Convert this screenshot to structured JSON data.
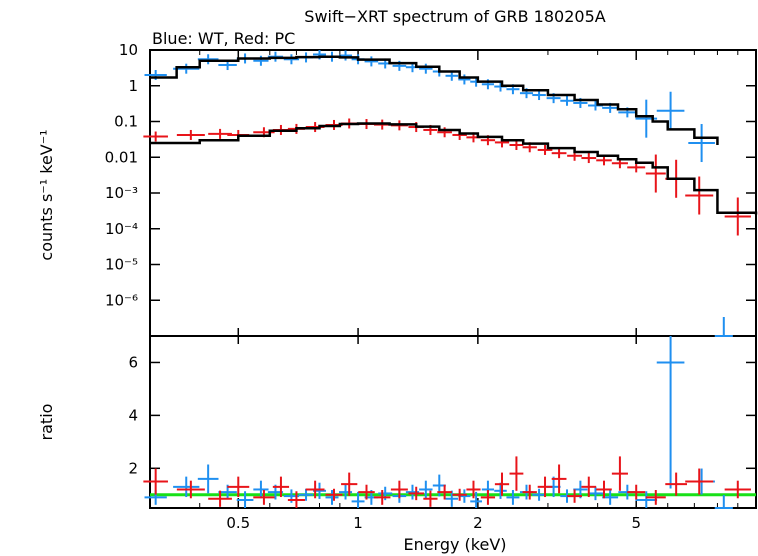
{
  "chart_data": [
    {
      "type": "scatter",
      "title": "Swift−XRT spectrum of GRB 180205A",
      "subtitle": "Blue: WT, Red: PC",
      "xlabel": "",
      "ylabel": "counts s⁻¹ keV⁻¹",
      "xscale": "log",
      "yscale": "log",
      "xlim": [
        0.3,
        10
      ],
      "ylim": [
        1e-07,
        10
      ],
      "y_tick_labels": [
        "10",
        "1",
        "0.1",
        "0.01",
        "10⁻³",
        "10⁻⁴",
        "10⁻⁵",
        "10⁻⁶"
      ],
      "y_tick_values": [
        10,
        1,
        0.1,
        0.01,
        0.001,
        0.0001,
        1e-05,
        1e-06
      ],
      "series": [
        {
          "kind": "data",
          "color": "#1f8ff0",
          "points": [
            [
              0.31,
              2.0
            ],
            [
              0.37,
              3.0
            ],
            [
              0.42,
              5.5
            ],
            [
              0.47,
              3.8
            ],
            [
              0.52,
              5.8
            ],
            [
              0.57,
              5.0
            ],
            [
              0.62,
              6.5
            ],
            [
              0.68,
              5.5
            ],
            [
              0.74,
              6.2
            ],
            [
              0.8,
              7.5
            ],
            [
              0.86,
              6.5
            ],
            [
              0.93,
              7.0
            ],
            [
              1.0,
              5.5
            ],
            [
              1.08,
              4.8
            ],
            [
              1.17,
              4.2
            ],
            [
              1.27,
              3.6
            ],
            [
              1.37,
              3.3
            ],
            [
              1.48,
              3.0
            ],
            [
              1.6,
              2.5
            ],
            [
              1.72,
              1.9
            ],
            [
              1.85,
              1.5
            ],
            [
              1.98,
              1.3
            ],
            [
              2.12,
              1.1
            ],
            [
              2.28,
              0.95
            ],
            [
              2.45,
              0.8
            ],
            [
              2.65,
              0.62
            ],
            [
              2.85,
              0.55
            ],
            [
              3.1,
              0.45
            ],
            [
              3.35,
              0.38
            ],
            [
              3.62,
              0.33
            ],
            [
              3.95,
              0.28
            ],
            [
              4.3,
              0.24
            ],
            [
              4.75,
              0.18
            ],
            [
              5.3,
              0.12
            ],
            [
              6.1,
              0.2
            ],
            [
              7.3,
              0.025
            ],
            [
              8.3,
              5e-08
            ]
          ]
        },
        {
          "kind": "model",
          "color": "#000000",
          "points": [
            [
              0.3,
              1.7
            ],
            [
              0.35,
              3.3
            ],
            [
              0.4,
              5.0
            ],
            [
              0.5,
              5.8
            ],
            [
              0.6,
              6.0
            ],
            [
              0.7,
              6.3
            ],
            [
              0.8,
              6.5
            ],
            [
              0.9,
              6.2
            ],
            [
              1.0,
              5.4
            ],
            [
              1.2,
              4.3
            ],
            [
              1.4,
              3.4
            ],
            [
              1.6,
              2.5
            ],
            [
              1.8,
              1.7
            ],
            [
              2.0,
              1.3
            ],
            [
              2.3,
              1.0
            ],
            [
              2.6,
              0.75
            ],
            [
              3.0,
              0.55
            ],
            [
              3.5,
              0.4
            ],
            [
              4.0,
              0.3
            ],
            [
              4.5,
              0.22
            ],
            [
              5.0,
              0.14
            ],
            [
              5.5,
              0.1
            ],
            [
              6.0,
              0.06
            ],
            [
              7.0,
              0.035
            ],
            [
              8.0,
              0.022
            ]
          ]
        },
        {
          "kind": "data",
          "color": "#e8141a",
          "points": [
            [
              0.31,
              0.038
            ],
            [
              0.38,
              0.042
            ],
            [
              0.45,
              0.045
            ],
            [
              0.5,
              0.042
            ],
            [
              0.58,
              0.05
            ],
            [
              0.64,
              0.058
            ],
            [
              0.7,
              0.062
            ],
            [
              0.78,
              0.07
            ],
            [
              0.87,
              0.08
            ],
            [
              0.95,
              0.088
            ],
            [
              1.05,
              0.085
            ],
            [
              1.15,
              0.082
            ],
            [
              1.27,
              0.078
            ],
            [
              1.4,
              0.07
            ],
            [
              1.52,
              0.058
            ],
            [
              1.65,
              0.05
            ],
            [
              1.8,
              0.042
            ],
            [
              1.95,
              0.036
            ],
            [
              2.12,
              0.03
            ],
            [
              2.3,
              0.026
            ],
            [
              2.5,
              0.022
            ],
            [
              2.7,
              0.019
            ],
            [
              2.95,
              0.016
            ],
            [
              3.2,
              0.013
            ],
            [
              3.5,
              0.011
            ],
            [
              3.8,
              0.0095
            ],
            [
              4.15,
              0.0082
            ],
            [
              4.55,
              0.0068
            ],
            [
              5.0,
              0.0052
            ],
            [
              5.6,
              0.0035
            ],
            [
              6.3,
              0.0025
            ],
            [
              7.2,
              0.00085
            ],
            [
              9.0,
              0.00022
            ]
          ]
        },
        {
          "kind": "model",
          "color": "#000000",
          "points": [
            [
              0.3,
              0.025
            ],
            [
              0.4,
              0.03
            ],
            [
              0.5,
              0.04
            ],
            [
              0.6,
              0.055
            ],
            [
              0.7,
              0.065
            ],
            [
              0.8,
              0.075
            ],
            [
              0.9,
              0.085
            ],
            [
              1.0,
              0.088
            ],
            [
              1.2,
              0.083
            ],
            [
              1.4,
              0.072
            ],
            [
              1.6,
              0.058
            ],
            [
              1.8,
              0.046
            ],
            [
              2.0,
              0.037
            ],
            [
              2.3,
              0.03
            ],
            [
              2.6,
              0.024
            ],
            [
              3.0,
              0.018
            ],
            [
              3.5,
              0.014
            ],
            [
              4.0,
              0.011
            ],
            [
              4.5,
              0.0088
            ],
            [
              5.0,
              0.007
            ],
            [
              5.5,
              0.0052
            ],
            [
              6.0,
              0.0025
            ],
            [
              7.0,
              0.0012
            ],
            [
              8.0,
              0.00028
            ],
            [
              10.0,
              0.00025
            ]
          ]
        }
      ]
    },
    {
      "type": "scatter",
      "title": "",
      "xlabel": "Energy (keV)",
      "ylabel": "ratio",
      "xscale": "log",
      "xlim": [
        0.3,
        10
      ],
      "ylim": [
        0.5,
        7
      ],
      "x_tick_labels": [
        "0.5",
        "1",
        "2",
        "5"
      ],
      "x_tick_values": [
        0.5,
        1,
        2,
        5
      ],
      "y_tick_labels": [
        "6",
        "4",
        "2"
      ],
      "y_tick_values": [
        6,
        4,
        2
      ],
      "reference_line": {
        "y": 1,
        "color": "#18e018"
      },
      "series": [
        {
          "kind": "data",
          "color": "#1f8ff0",
          "points": [
            [
              0.31,
              0.9
            ],
            [
              0.37,
              1.3
            ],
            [
              0.42,
              1.6
            ],
            [
              0.47,
              1.1
            ],
            [
              0.52,
              0.8
            ],
            [
              0.57,
              1.2
            ],
            [
              0.62,
              1.1
            ],
            [
              0.68,
              0.95
            ],
            [
              0.74,
              1.0
            ],
            [
              0.8,
              1.15
            ],
            [
              0.86,
              0.9
            ],
            [
              0.93,
              1.1
            ],
            [
              1.0,
              0.75
            ],
            [
              1.08,
              0.9
            ],
            [
              1.17,
              1.05
            ],
            [
              1.27,
              0.95
            ],
            [
              1.37,
              1.1
            ],
            [
              1.48,
              1.2
            ],
            [
              1.6,
              1.35
            ],
            [
              1.72,
              0.85
            ],
            [
              1.85,
              0.95
            ],
            [
              1.98,
              0.75
            ],
            [
              2.12,
              1.2
            ],
            [
              2.28,
              1.15
            ],
            [
              2.45,
              0.9
            ],
            [
              2.65,
              1.1
            ],
            [
              2.85,
              1.0
            ],
            [
              3.1,
              1.3
            ],
            [
              3.35,
              0.95
            ],
            [
              3.62,
              1.2
            ],
            [
              3.95,
              1.05
            ],
            [
              4.3,
              0.9
            ],
            [
              4.75,
              1.1
            ],
            [
              5.3,
              0.8
            ],
            [
              6.1,
              6.0
            ],
            [
              7.3,
              1.5
            ],
            [
              8.3,
              0.5
            ]
          ]
        },
        {
          "kind": "data",
          "color": "#e8141a",
          "points": [
            [
              0.31,
              1.5
            ],
            [
              0.38,
              1.2
            ],
            [
              0.45,
              0.85
            ],
            [
              0.5,
              1.3
            ],
            [
              0.58,
              0.9
            ],
            [
              0.64,
              1.3
            ],
            [
              0.7,
              0.8
            ],
            [
              0.78,
              1.2
            ],
            [
              0.87,
              1.0
            ],
            [
              0.95,
              1.4
            ],
            [
              1.05,
              1.1
            ],
            [
              1.15,
              0.9
            ],
            [
              1.27,
              1.2
            ],
            [
              1.4,
              1.05
            ],
            [
              1.52,
              0.85
            ],
            [
              1.65,
              1.1
            ],
            [
              1.8,
              1.0
            ],
            [
              1.95,
              1.2
            ],
            [
              2.12,
              0.9
            ],
            [
              2.3,
              1.4
            ],
            [
              2.5,
              1.8
            ],
            [
              2.7,
              1.1
            ],
            [
              2.95,
              1.3
            ],
            [
              3.2,
              1.6
            ],
            [
              3.5,
              0.95
            ],
            [
              3.8,
              1.3
            ],
            [
              4.15,
              1.2
            ],
            [
              4.55,
              1.8
            ],
            [
              5.0,
              1.1
            ],
            [
              5.6,
              0.9
            ],
            [
              6.3,
              1.4
            ],
            [
              7.2,
              1.5
            ],
            [
              9.0,
              1.2
            ]
          ]
        }
      ]
    }
  ]
}
